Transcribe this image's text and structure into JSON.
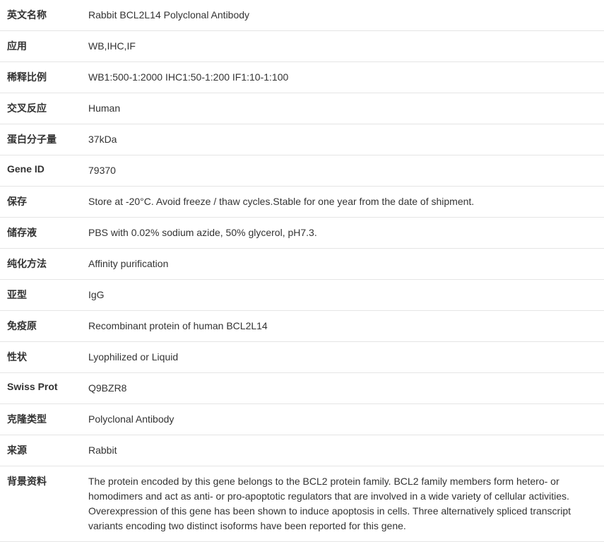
{
  "rows": [
    {
      "label": "英文名称",
      "value": "Rabbit BCL2L14 Polyclonal Antibody"
    },
    {
      "label": "应用",
      "value": "WB,IHC,IF"
    },
    {
      "label": "稀释比例",
      "value": "WB1:500-1:2000 IHC1:50-1:200 IF1:10-1:100"
    },
    {
      "label": "交叉反应",
      "value": "Human"
    },
    {
      "label": "蛋白分子量",
      "value": "37kDa"
    },
    {
      "label": "Gene ID",
      "value": "79370"
    },
    {
      "label": "保存",
      "value": "Store at -20°C. Avoid freeze / thaw cycles.Stable for one year from the date of shipment."
    },
    {
      "label": "储存液",
      "value": "PBS with 0.02% sodium azide, 50% glycerol, pH7.3."
    },
    {
      "label": "纯化方法",
      "value": "Affinity purification"
    },
    {
      "label": "亚型",
      "value": "IgG"
    },
    {
      "label": "免疫原",
      "value": "Recombinant protein of human BCL2L14"
    },
    {
      "label": "性状",
      "value": "Lyophilized or Liquid"
    },
    {
      "label": "Swiss Prot",
      "value": "Q9BZR8"
    },
    {
      "label": "克隆类型",
      "value": "Polyclonal Antibody"
    },
    {
      "label": "来源",
      "value": "Rabbit"
    },
    {
      "label": "背景资料",
      "value": "The protein encoded by this gene belongs to the BCL2 protein family. BCL2 family members form hetero- or homodimers and act as anti- or pro-apoptotic regulators that are involved in a wide variety of cellular activities. Overexpression of this gene has been shown to induce apoptosis in cells. Three alternatively spliced transcript variants encoding two distinct isoforms have been reported for this gene."
    }
  ]
}
